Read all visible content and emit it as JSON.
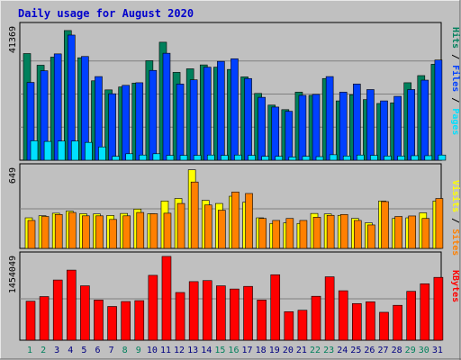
{
  "title": "Daily usage for August 2020",
  "colors": {
    "background": "#C0C0C0",
    "plot_bg": "#C0C0C0",
    "title": "#0000CC",
    "hits": "#00805C",
    "files": "#0040FF",
    "pages": "#00E0FF",
    "visits": "#FFFF00",
    "sites": "#FF8000",
    "kbytes": "#FF0000",
    "weekend_day": "#00805C",
    "weekday_day": "#000080"
  },
  "chart_data": [
    {
      "type": "bar",
      "name": "hits-files-pages",
      "categories": [
        "1",
        "2",
        "3",
        "4",
        "5",
        "6",
        "7",
        "8",
        "9",
        "10",
        "11",
        "12",
        "13",
        "14",
        "15",
        "16",
        "17",
        "18",
        "19",
        "20",
        "21",
        "22",
        "23",
        "24",
        "25",
        "26",
        "27",
        "28",
        "29",
        "30",
        "31"
      ],
      "ymax_label": "41369",
      "ylim": [
        0,
        41369
      ],
      "side_labels": [
        "Pages",
        "Files",
        "Hits"
      ],
      "series": [
        {
          "name": "Hits",
          "values": [
            32900,
            29300,
            31800,
            40000,
            31600,
            24500,
            21700,
            22600,
            23800,
            30700,
            36400,
            27100,
            28200,
            29400,
            28700,
            28000,
            25700,
            20600,
            17000,
            15600,
            21000,
            20000,
            25200,
            18300,
            20200,
            18700,
            17500,
            17700,
            23900,
            26100,
            29600
          ]
        },
        {
          "name": "Files",
          "values": [
            24000,
            27600,
            32800,
            38600,
            32000,
            25800,
            20500,
            23100,
            23900,
            27700,
            33000,
            23500,
            24800,
            28700,
            30500,
            31300,
            25200,
            19400,
            16400,
            15100,
            20000,
            20300,
            25800,
            21000,
            23500,
            21800,
            18300,
            19700,
            21800,
            24700,
            30900
          ]
        },
        {
          "name": "Pages",
          "values": [
            6000,
            5800,
            5900,
            5900,
            5500,
            4100,
            1200,
            2000,
            1600,
            2000,
            1500,
            1500,
            1500,
            1600,
            1500,
            1600,
            1500,
            1200,
            1200,
            1000,
            1200,
            1100,
            1700,
            1300,
            1600,
            1500,
            1300,
            1300,
            1400,
            1400,
            1600
          ]
        }
      ]
    },
    {
      "type": "bar",
      "name": "visits-sites",
      "categories": [
        "1",
        "2",
        "3",
        "4",
        "5",
        "6",
        "7",
        "8",
        "9",
        "10",
        "11",
        "12",
        "13",
        "14",
        "15",
        "16",
        "17",
        "18",
        "19",
        "20",
        "21",
        "22",
        "23",
        "24",
        "25",
        "26",
        "27",
        "28",
        "29",
        "30",
        "31"
      ],
      "ymax_label": "649",
      "ylim": [
        0,
        649
      ],
      "side_labels": [
        "Sites",
        "Visits"
      ],
      "series": [
        {
          "name": "Visits",
          "values": [
            245,
            262,
            282,
            299,
            278,
            276,
            264,
            280,
            315,
            278,
            380,
            400,
            630,
            385,
            360,
            418,
            370,
            245,
            200,
            205,
            200,
            280,
            276,
            265,
            240,
            205,
            380,
            240,
            245,
            285,
            380
          ]
        },
        {
          "name": "Sites",
          "values": [
            224,
            256,
            272,
            288,
            261,
            261,
            232,
            261,
            288,
            278,
            282,
            360,
            532,
            348,
            306,
            452,
            440,
            240,
            224,
            240,
            224,
            250,
            265,
            272,
            224,
            188,
            375,
            256,
            260,
            240,
            400
          ]
        }
      ]
    },
    {
      "type": "bar",
      "name": "kbytes",
      "categories": [
        "1",
        "2",
        "3",
        "4",
        "5",
        "6",
        "7",
        "8",
        "9",
        "10",
        "11",
        "12",
        "13",
        "14",
        "15",
        "16",
        "17",
        "18",
        "19",
        "20",
        "21",
        "22",
        "23",
        "24",
        "25",
        "26",
        "27",
        "28",
        "29",
        "30",
        "31"
      ],
      "ymax_label": "1454049",
      "ylim": [
        0,
        1454049
      ],
      "side_labels": [
        "KBytes"
      ],
      "series": [
        {
          "name": "KBytes",
          "values": [
            670000,
            750000,
            1035000,
            1205000,
            935000,
            690000,
            580000,
            665000,
            680000,
            1115000,
            1440000,
            820000,
            1007000,
            1025000,
            935000,
            880000,
            925000,
            690000,
            1125000,
            490000,
            515000,
            755000,
            1090000,
            850000,
            630000,
            660000,
            480000,
            600000,
            840000,
            970000,
            1080000
          ]
        }
      ]
    }
  ]
}
